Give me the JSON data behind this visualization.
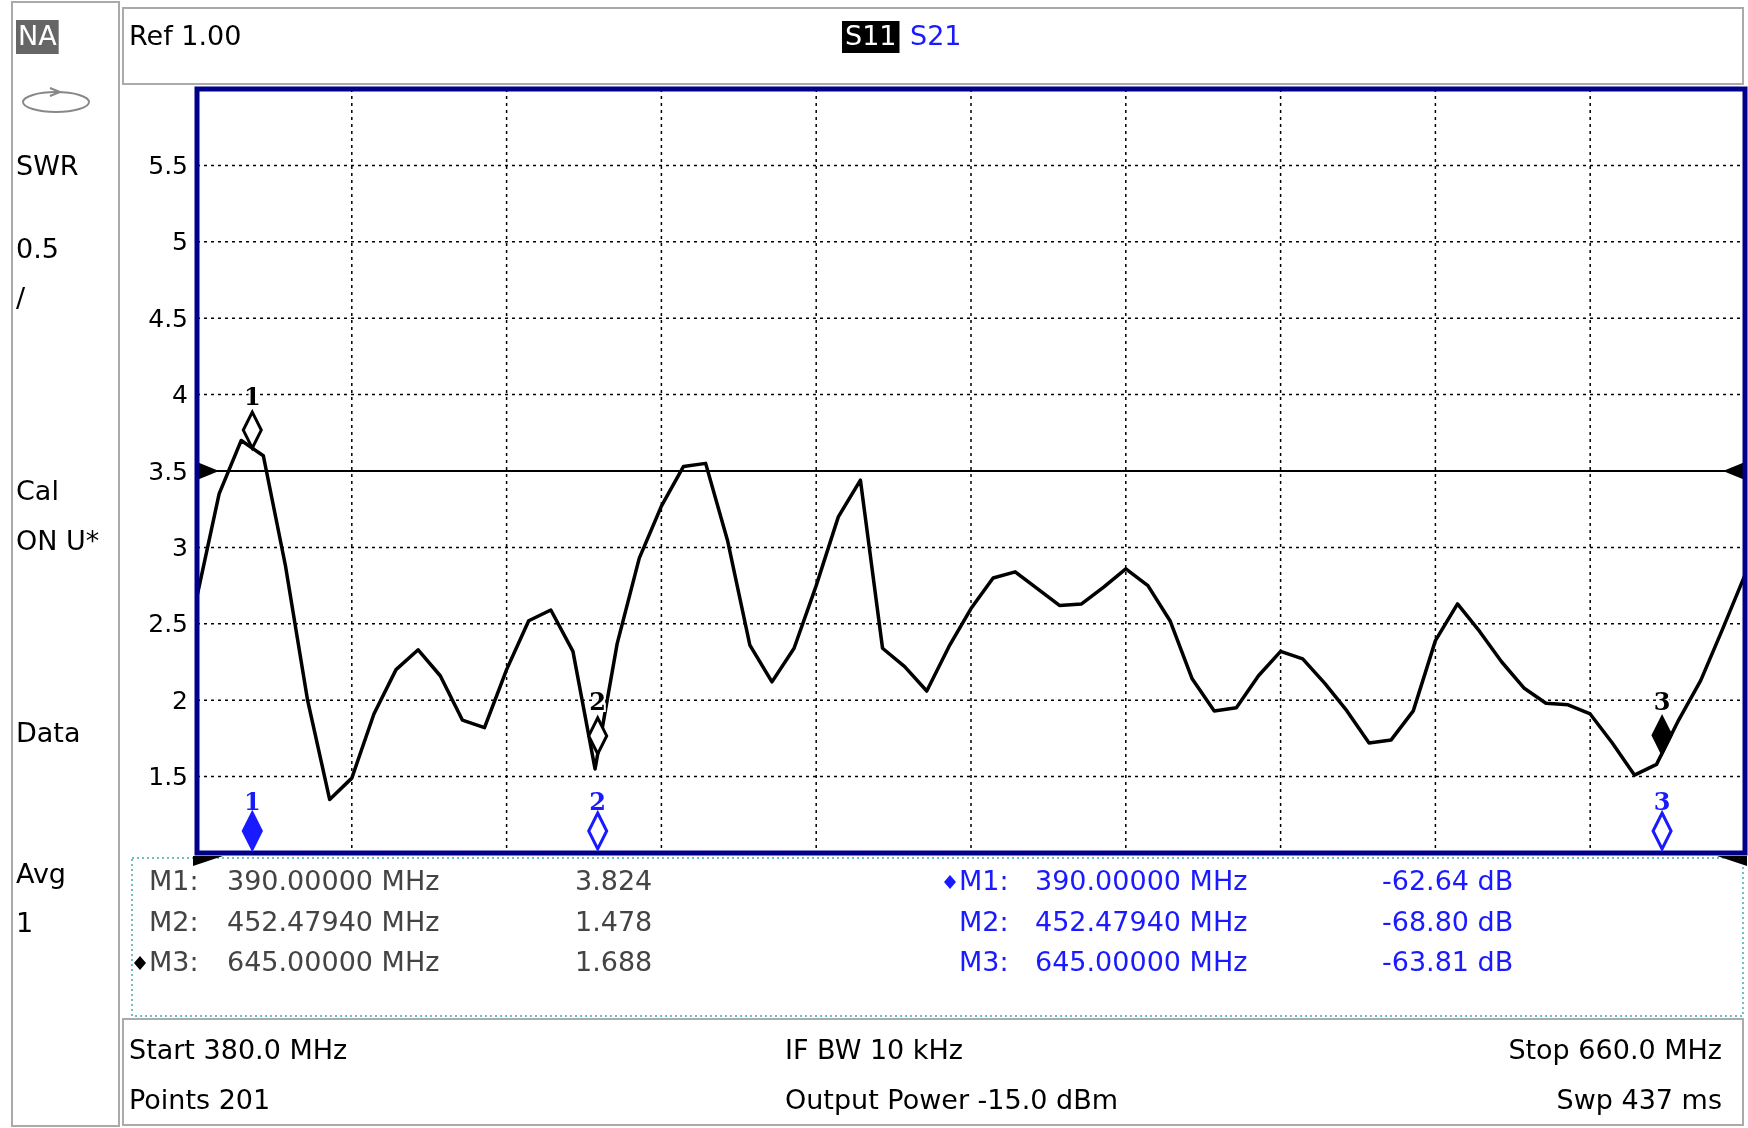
{
  "chart_data": {
    "type": "line",
    "ylabel": "SWR",
    "ylim": [
      1,
      6
    ],
    "categories": [
      null,
      null,
      null,
      null,
      null,
      null,
      null,
      null,
      null,
      null,
      null,
      null,
      null,
      null,
      null,
      null,
      null,
      null,
      null,
      null,
      null,
      null,
      null,
      null,
      null,
      null,
      null,
      null,
      null,
      null,
      null,
      null,
      null,
      null,
      null,
      null,
      null,
      null,
      null,
      null,
      null,
      null,
      null,
      null,
      null,
      null,
      null,
      null,
      null,
      null,
      null,
      null,
      null,
      null,
      null,
      null,
      null,
      null,
      null,
      null,
      null,
      null,
      null,
      null,
      null,
      null,
      null,
      null,
      null,
      null,
      null
    ],
    "yticks": [
      1.5,
      2,
      2.5,
      3,
      3.5,
      4,
      4.5,
      5,
      5.5
    ],
    "grid": true,
    "legend": "top",
    "marker": "none",
    "line_style": "solid",
    "series": [
      {
        "name": "S11",
        "color": "#000000",
        "values": [
          2.68,
          3.35,
          3.7,
          3.6,
          2.88,
          2.0,
          1.35,
          1.49,
          1.91,
          2.2,
          2.33,
          2.16,
          1.87,
          1.82,
          2.2,
          2.52,
          2.59,
          2.32,
          1.55,
          2.37,
          2.93,
          3.27,
          3.53,
          3.55,
          3.04,
          2.36,
          2.12,
          2.34,
          2.75,
          3.2,
          3.44,
          2.34,
          2.22,
          2.06,
          2.35,
          2.6,
          2.8,
          2.84,
          2.73,
          2.62,
          2.63,
          2.74,
          2.86,
          2.75,
          2.52,
          2.14,
          1.93,
          1.95,
          2.16,
          2.32,
          2.27,
          2.11,
          1.93,
          1.72,
          1.74,
          1.93,
          2.39,
          2.63,
          2.45,
          2.25,
          2.08,
          1.98,
          1.97,
          1.91,
          1.72,
          1.51,
          1.58,
          1.87,
          2.13,
          2.47,
          2.82
        ]
      }
    ],
    "ref_lines": [
      {
        "axis": "y",
        "value": 3.5
      }
    ],
    "annotations": [
      "NA",
      "0.5",
      "/",
      "Cal",
      "ON U*",
      "Data",
      "Avg",
      "1",
      "Ref 1.00",
      "S21",
      "M1:",
      "390.00000 MHz",
      "3.824",
      "M2:",
      "452.47940 MHz",
      "1.478",
      "M3:",
      "645.00000 MHz",
      "1.688",
      "M1:",
      "390.00000 MHz",
      "-62.64 dB",
      "M2:",
      "452.47940 MHz",
      "-68.80 dB",
      "M3:",
      "645.00000 MHz",
      "-63.81 dB",
      "Start 380.0 MHz",
      "IF BW 10 kHz",
      "Stop 660.0 MHz",
      "Points 201",
      "Output Power -15.0 dBm",
      "Swp 437 ms",
      "1",
      "2",
      "3",
      "1",
      "2",
      "3"
    ]
  }
}
